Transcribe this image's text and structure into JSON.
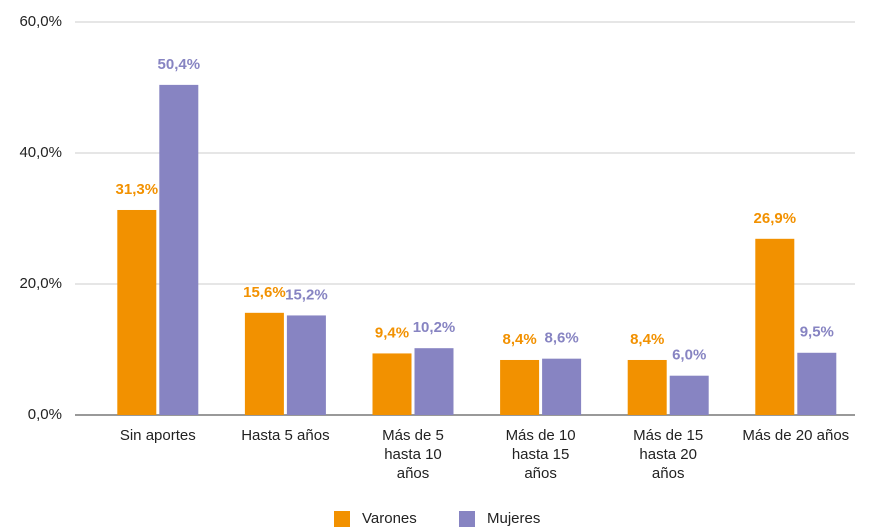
{
  "chart_data": {
    "type": "bar",
    "categories": [
      "Sin aportes",
      "Hasta 5 años",
      "Más de 5 hasta 10 años",
      "Más de 10 hasta 15 años",
      "Más de 15 hasta 20 años",
      "Más de 20 años"
    ],
    "series": [
      {
        "name": "Varones",
        "color": "#f29100",
        "values": [
          31.3,
          15.6,
          9.4,
          8.4,
          8.4,
          26.9
        ],
        "value_labels": [
          "31,3%",
          "15,6%",
          "9,4%",
          "8,4%",
          "8,4%",
          "26,9%"
        ]
      },
      {
        "name": "Mujeres",
        "color": "#8784c2",
        "values": [
          50.4,
          15.2,
          10.2,
          8.6,
          6.0,
          9.5
        ],
        "value_labels": [
          "50,4%",
          "15,2%",
          "10,2%",
          "8,6%",
          "6,0%",
          "9,5%"
        ]
      }
    ],
    "ylim": [
      0,
      60
    ],
    "yticks": [
      {
        "value": 0,
        "label": "0,0%"
      },
      {
        "value": 20,
        "label": "20,0%"
      },
      {
        "value": 40,
        "label": "40,0%"
      },
      {
        "value": 60,
        "label": "60,0%"
      }
    ],
    "grid": true,
    "legend": "bottom"
  }
}
